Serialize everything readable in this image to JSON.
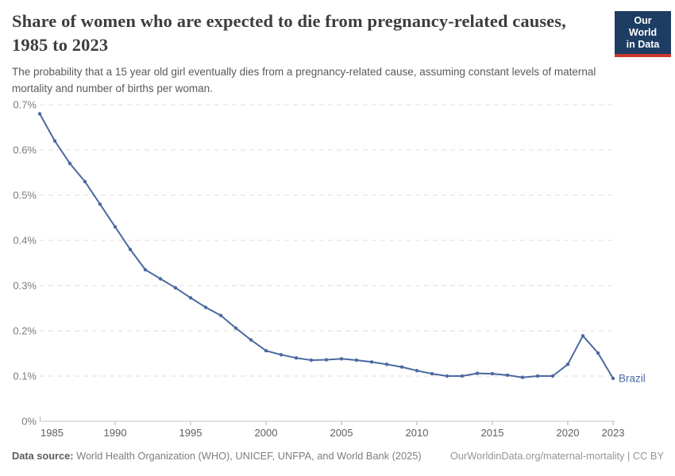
{
  "header": {
    "title": "Share of women who are expected to die from pregnancy-related causes, 1985 to 2023",
    "subtitle": "The probability that a 15 year old girl eventually dies from a pregnancy-related cause, assuming constant levels of maternal mortality and number of births per woman.",
    "logo": {
      "line1": "Our World",
      "line2": "in Data",
      "background_color": "#1d3d63",
      "accent_color": "#c9372d"
    }
  },
  "chart_data": {
    "type": "line",
    "title": "Share of women who are expected to die from pregnancy-related causes, 1985 to 2023",
    "unit": "%",
    "x": [
      1985,
      1986,
      1987,
      1988,
      1989,
      1990,
      1991,
      1992,
      1993,
      1994,
      1995,
      1996,
      1997,
      1998,
      1999,
      2000,
      2001,
      2002,
      2003,
      2004,
      2005,
      2006,
      2007,
      2008,
      2009,
      2010,
      2011,
      2012,
      2013,
      2014,
      2015,
      2016,
      2017,
      2018,
      2019,
      2020,
      2021,
      2022,
      2023
    ],
    "series": [
      {
        "name": "Brazil",
        "color": "#4a69a0",
        "values": [
          0.68,
          0.62,
          0.57,
          0.53,
          0.48,
          0.43,
          0.38,
          0.335,
          0.315,
          0.295,
          0.273,
          0.252,
          0.234,
          0.206,
          0.18,
          0.156,
          0.147,
          0.14,
          0.135,
          0.136,
          0.138,
          0.135,
          0.131,
          0.126,
          0.12,
          0.112,
          0.105,
          0.1,
          0.1,
          0.106,
          0.105,
          0.102,
          0.097,
          0.1,
          0.1,
          0.126,
          0.189,
          0.151,
          0.095
        ]
      }
    ],
    "xticks": [
      1985,
      1990,
      1995,
      2000,
      2005,
      2010,
      2015,
      2020,
      2023
    ],
    "yticks": [
      0,
      0.1,
      0.2,
      0.3,
      0.4,
      0.5,
      0.6,
      0.7
    ],
    "xlim": [
      1985,
      2023
    ],
    "ylim": [
      0,
      0.7
    ],
    "y_format": "percent",
    "grid": "horizontal-dashed",
    "legend_position": "end-of-line-label",
    "colors": {
      "gridline": "#dcdcdc",
      "axis_line": "#c6c6c6",
      "tick_mark": "#b3b3b3",
      "y_label": "#7c7c7c",
      "x_label": "#5e5e5e"
    }
  },
  "footer": {
    "source_label": "Data source:",
    "source_text": "World Health Organization (WHO), UNICEF, UNFPA, and World Bank (2025)",
    "link_text": "OurWorldinData.org/maternal-mortality | CC BY"
  }
}
